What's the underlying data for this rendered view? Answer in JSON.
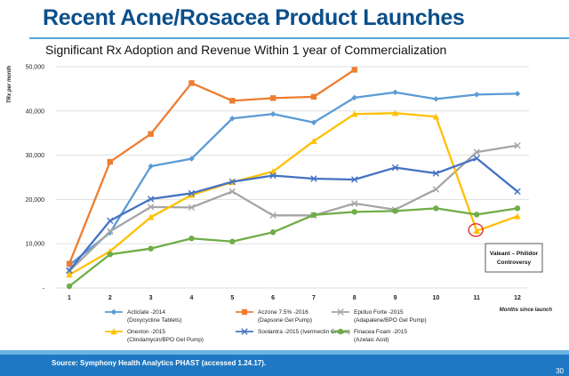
{
  "title": "Recent Acne/Rosacea Product Launches",
  "subtitle": "Significant Rx Adoption and Revenue Within 1 year of Commercialization",
  "source": "Source: Symphony Health Analytics PHAST (accessed 1.24.17).",
  "page_number": "30",
  "chart_data": {
    "type": "line",
    "ylabel": "TRx per month",
    "xlabel": "Months since launch",
    "x": [
      1,
      2,
      3,
      4,
      5,
      6,
      7,
      8,
      9,
      10,
      11,
      12
    ],
    "ylim": [
      0,
      50000
    ],
    "y_ticks": [
      "-",
      "10,000",
      "20,000",
      "30,000",
      "40,000",
      "50,000"
    ],
    "grid": true,
    "legend_position": "bottom",
    "series": [
      {
        "name": "Acticlate -2014",
        "sub": "(Doxycycline Tablets)",
        "color": "#5b9bd5",
        "marker": "diamond",
        "values": [
          5200,
          12500,
          27500,
          29200,
          38300,
          39300,
          37400,
          43000,
          44200,
          42700,
          43700,
          43900
        ]
      },
      {
        "name": "Aczone 7.5% -2016",
        "sub": "(Dapsone Gel Pump)",
        "color": "#ed7d31",
        "marker": "square",
        "values": [
          5500,
          28500,
          34800,
          46300,
          42300,
          42900,
          43200,
          49300,
          null,
          null,
          null,
          null
        ]
      },
      {
        "name": "Epiduo Forte -2015",
        "sub": "(Adapalene/BPO Gel Pump)",
        "color": "#a5a5a5",
        "marker": "x",
        "values": [
          3800,
          12800,
          18300,
          18200,
          21800,
          16400,
          16400,
          19100,
          17700,
          22300,
          30700,
          32200
        ]
      },
      {
        "name": "Onexton -2015",
        "sub": "(Clindamycin/BPO Gel Pump)",
        "color": "#ffc000",
        "marker": "triangle",
        "values": [
          3000,
          8300,
          16000,
          21000,
          23900,
          26300,
          33200,
          39300,
          39500,
          38700,
          12900,
          16200
        ]
      },
      {
        "name": "Soolantra -2015 (Ivermectin Cream)",
        "sub": "",
        "color": "#4472c4",
        "marker": "x",
        "values": [
          4000,
          15200,
          20100,
          21400,
          24000,
          25400,
          24700,
          24500,
          27200,
          25900,
          29300,
          21800
        ]
      },
      {
        "name": "Finacea Foam -2015",
        "sub": "(Azelaic Acid)",
        "color": "#70ad47",
        "marker": "circle",
        "values": [
          400,
          7600,
          8900,
          11200,
          10500,
          12600,
          16500,
          17200,
          17400,
          18000,
          16600,
          18000
        ]
      }
    ],
    "annotation": {
      "text_line1": "Valeant – Philidor",
      "text_line2": "Controversy",
      "x": 11,
      "y": 12900
    }
  }
}
